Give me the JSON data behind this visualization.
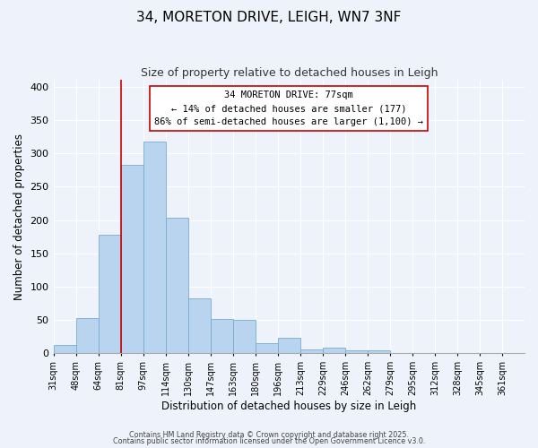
{
  "title": "34, MORETON DRIVE, LEIGH, WN7 3NF",
  "subtitle": "Size of property relative to detached houses in Leigh",
  "xlabel": "Distribution of detached houses by size in Leigh",
  "ylabel": "Number of detached properties",
  "bar_values": [
    13,
    53,
    178,
    283,
    317,
    203,
    83,
    51,
    50,
    16,
    24,
    6,
    9,
    4,
    5,
    1,
    0,
    0,
    0,
    0,
    0
  ],
  "bin_labels": [
    "31sqm",
    "48sqm",
    "64sqm",
    "81sqm",
    "97sqm",
    "114sqm",
    "130sqm",
    "147sqm",
    "163sqm",
    "180sqm",
    "196sqm",
    "213sqm",
    "229sqm",
    "246sqm",
    "262sqm",
    "279sqm",
    "295sqm",
    "312sqm",
    "328sqm",
    "345sqm",
    "361sqm"
  ],
  "bar_color": "#b8d4ee",
  "bar_edge_color": "#7aabce",
  "vline_x_index": 3,
  "vline_color": "#cc0000",
  "annotation_title": "34 MORETON DRIVE: 77sqm",
  "annotation_line1": "← 14% of detached houses are smaller (177)",
  "annotation_line2": "86% of semi-detached houses are larger (1,100) →",
  "annotation_box_color": "#ffffff",
  "annotation_box_edge": "#cc0000",
  "ylim": [
    0,
    410
  ],
  "yticks": [
    0,
    50,
    100,
    150,
    200,
    250,
    300,
    350,
    400
  ],
  "bg_color": "#eef2fa",
  "grid_color": "#ffffff",
  "footer1": "Contains HM Land Registry data © Crown copyright and database right 2025.",
  "footer2": "Contains public sector information licensed under the Open Government Licence v3.0."
}
